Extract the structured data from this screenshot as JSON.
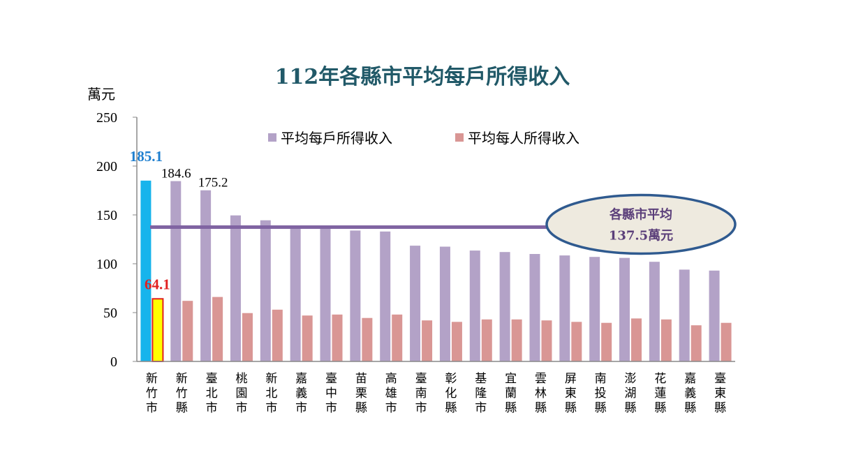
{
  "chart_data": {
    "type": "bar",
    "title": "112年各縣市平均每戶所得收入",
    "ylabel": "萬元",
    "ylim": [
      0,
      250
    ],
    "yticks": [
      0,
      50,
      100,
      150,
      200,
      250
    ],
    "categories": [
      "新竹市",
      "新竹縣",
      "臺北市",
      "桃園市",
      "新北市",
      "嘉義市",
      "臺中市",
      "苗栗縣",
      "高雄市",
      "臺南市",
      "彰化縣",
      "基隆市",
      "宜蘭縣",
      "雲林縣",
      "屏東縣",
      "南投縣",
      "澎湖縣",
      "花蓮縣",
      "嘉義縣",
      "臺東縣"
    ],
    "series": [
      {
        "name": "平均每戶所得收入",
        "color": "#b3a2c7",
        "values": [
          185.1,
          184.6,
          175.2,
          149.5,
          144.5,
          138.0,
          137.0,
          134.0,
          133.0,
          118.5,
          117.5,
          113.5,
          112.0,
          110.0,
          108.5,
          107.0,
          106.0,
          102.0,
          94.0,
          93.0
        ]
      },
      {
        "name": "平均每人所得收入",
        "color": "#d99694",
        "values": [
          64.1,
          62.0,
          66.0,
          49.5,
          53.0,
          47.0,
          48.0,
          44.5,
          48.0,
          42.0,
          40.5,
          43.0,
          43.0,
          42.0,
          40.5,
          39.5,
          44.0,
          43.0,
          37.0,
          39.5
        ]
      }
    ],
    "data_labels": {
      "highlight_household": "185.1",
      "highlight_person": "64.1",
      "second": "184.6",
      "third": "175.2"
    },
    "highlight_colors": {
      "household_fill": "#17b4ec",
      "person_fill": "#ffff00",
      "person_stroke": "#e02020"
    },
    "average": {
      "value": 137.5,
      "label_line1": "各縣市平均",
      "label_line2": "137.5萬元",
      "line_color": "#8064a2"
    },
    "legend_position": "top-center",
    "grid": false
  }
}
